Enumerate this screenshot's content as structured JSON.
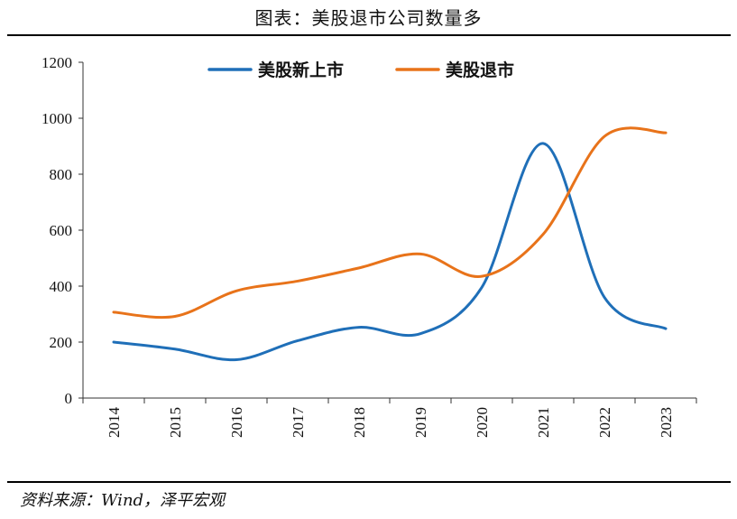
{
  "title": "图表：美股退市公司数量多",
  "source": "资料来源：Wind，泽平宏观",
  "chart_data": {
    "type": "line",
    "x": [
      "2014",
      "2015",
      "2016",
      "2017",
      "2018",
      "2019",
      "2020",
      "2021",
      "2022",
      "2023"
    ],
    "series": [
      {
        "name": "美股新上市",
        "color": "#1f6fb8",
        "values": [
          200,
          175,
          137,
          205,
          253,
          230,
          395,
          910,
          360,
          248
        ]
      },
      {
        "name": "美股退市",
        "color": "#e8731a",
        "values": [
          307,
          292,
          383,
          418,
          465,
          515,
          435,
          585,
          935,
          948
        ]
      }
    ],
    "ylim": [
      0,
      1200
    ],
    "yticks": [
      0,
      200,
      400,
      600,
      800,
      1000,
      1200
    ],
    "grid": false,
    "legend_position": "top-center",
    "smooth": true
  }
}
